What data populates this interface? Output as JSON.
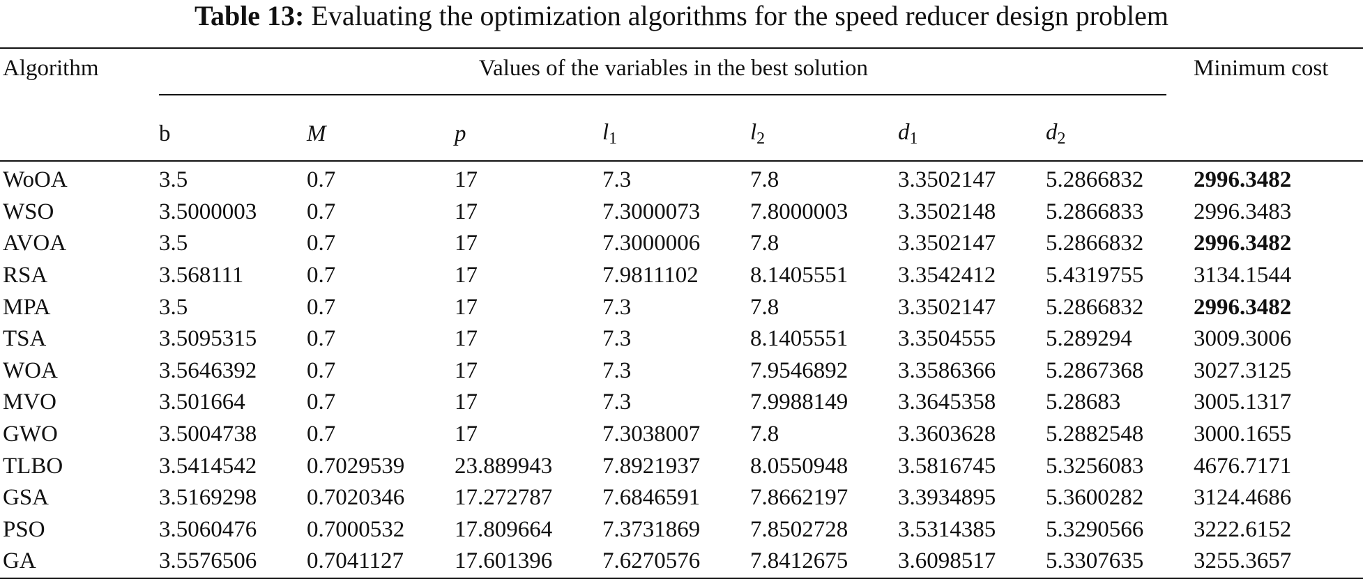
{
  "caption": {
    "label": "Table 13:",
    "text": "Evaluating the optimization algorithms for the speed reducer design problem"
  },
  "headers": {
    "algorithm": "Algorithm",
    "group": "Values of the variables in the best solution",
    "cost": "Minimum cost",
    "vars": [
      {
        "sym": "b",
        "sub": "",
        "italic": false
      },
      {
        "sym": "M",
        "sub": "",
        "italic": true
      },
      {
        "sym": "p",
        "sub": "",
        "italic": true
      },
      {
        "sym": "l",
        "sub": "1",
        "italic": true
      },
      {
        "sym": "l",
        "sub": "2",
        "italic": true
      },
      {
        "sym": "d",
        "sub": "1",
        "italic": true
      },
      {
        "sym": "d",
        "sub": "2",
        "italic": true
      }
    ]
  },
  "rows": [
    {
      "algorithm": "WoOA",
      "values": [
        "3.5",
        "0.7",
        "17",
        "7.3",
        "7.8",
        "3.3502147",
        "5.2866832"
      ],
      "cost": "2996.3482",
      "best": true
    },
    {
      "algorithm": "WSO",
      "values": [
        "3.5000003",
        "0.7",
        "17",
        "7.3000073",
        "7.8000003",
        "3.3502148",
        "5.2866833"
      ],
      "cost": "2996.3483",
      "best": false
    },
    {
      "algorithm": "AVOA",
      "values": [
        "3.5",
        "0.7",
        "17",
        "7.3000006",
        "7.8",
        "3.3502147",
        "5.2866832"
      ],
      "cost": "2996.3482",
      "best": true
    },
    {
      "algorithm": "RSA",
      "values": [
        "3.568111",
        "0.7",
        "17",
        "7.9811102",
        "8.1405551",
        "3.3542412",
        "5.4319755"
      ],
      "cost": "3134.1544",
      "best": false
    },
    {
      "algorithm": "MPA",
      "values": [
        "3.5",
        "0.7",
        "17",
        "7.3",
        "7.8",
        "3.3502147",
        "5.2866832"
      ],
      "cost": "2996.3482",
      "best": true
    },
    {
      "algorithm": "TSA",
      "values": [
        "3.5095315",
        "0.7",
        "17",
        "7.3",
        "8.1405551",
        "3.3504555",
        "5.289294"
      ],
      "cost": "3009.3006",
      "best": false
    },
    {
      "algorithm": "WOA",
      "values": [
        "3.5646392",
        "0.7",
        "17",
        "7.3",
        "7.9546892",
        "3.3586366",
        "5.2867368"
      ],
      "cost": "3027.3125",
      "best": false
    },
    {
      "algorithm": "MVO",
      "values": [
        "3.501664",
        "0.7",
        "17",
        "7.3",
        "7.9988149",
        "3.3645358",
        "5.28683"
      ],
      "cost": "3005.1317",
      "best": false
    },
    {
      "algorithm": "GWO",
      "values": [
        "3.5004738",
        "0.7",
        "17",
        "7.3038007",
        "7.8",
        "3.3603628",
        "5.2882548"
      ],
      "cost": "3000.1655",
      "best": false
    },
    {
      "algorithm": "TLBO",
      "values": [
        "3.5414542",
        "0.7029539",
        "23.889943",
        "7.8921937",
        "8.0550948",
        "3.5816745",
        "5.3256083"
      ],
      "cost": "4676.7171",
      "best": false
    },
    {
      "algorithm": "GSA",
      "values": [
        "3.5169298",
        "0.7020346",
        "17.272787",
        "7.6846591",
        "7.8662197",
        "3.3934895",
        "5.3600282"
      ],
      "cost": "3124.4686",
      "best": false
    },
    {
      "algorithm": "PSO",
      "values": [
        "3.5060476",
        "0.7000532",
        "17.809664",
        "7.3731869",
        "7.8502728",
        "3.5314385",
        "5.3290566"
      ],
      "cost": "3222.6152",
      "best": false
    },
    {
      "algorithm": "GA",
      "values": [
        "3.5576506",
        "0.7041127",
        "17.601396",
        "7.6270576",
        "7.8412675",
        "3.6098517",
        "5.3307635"
      ],
      "cost": "3255.3657",
      "best": false
    }
  ]
}
